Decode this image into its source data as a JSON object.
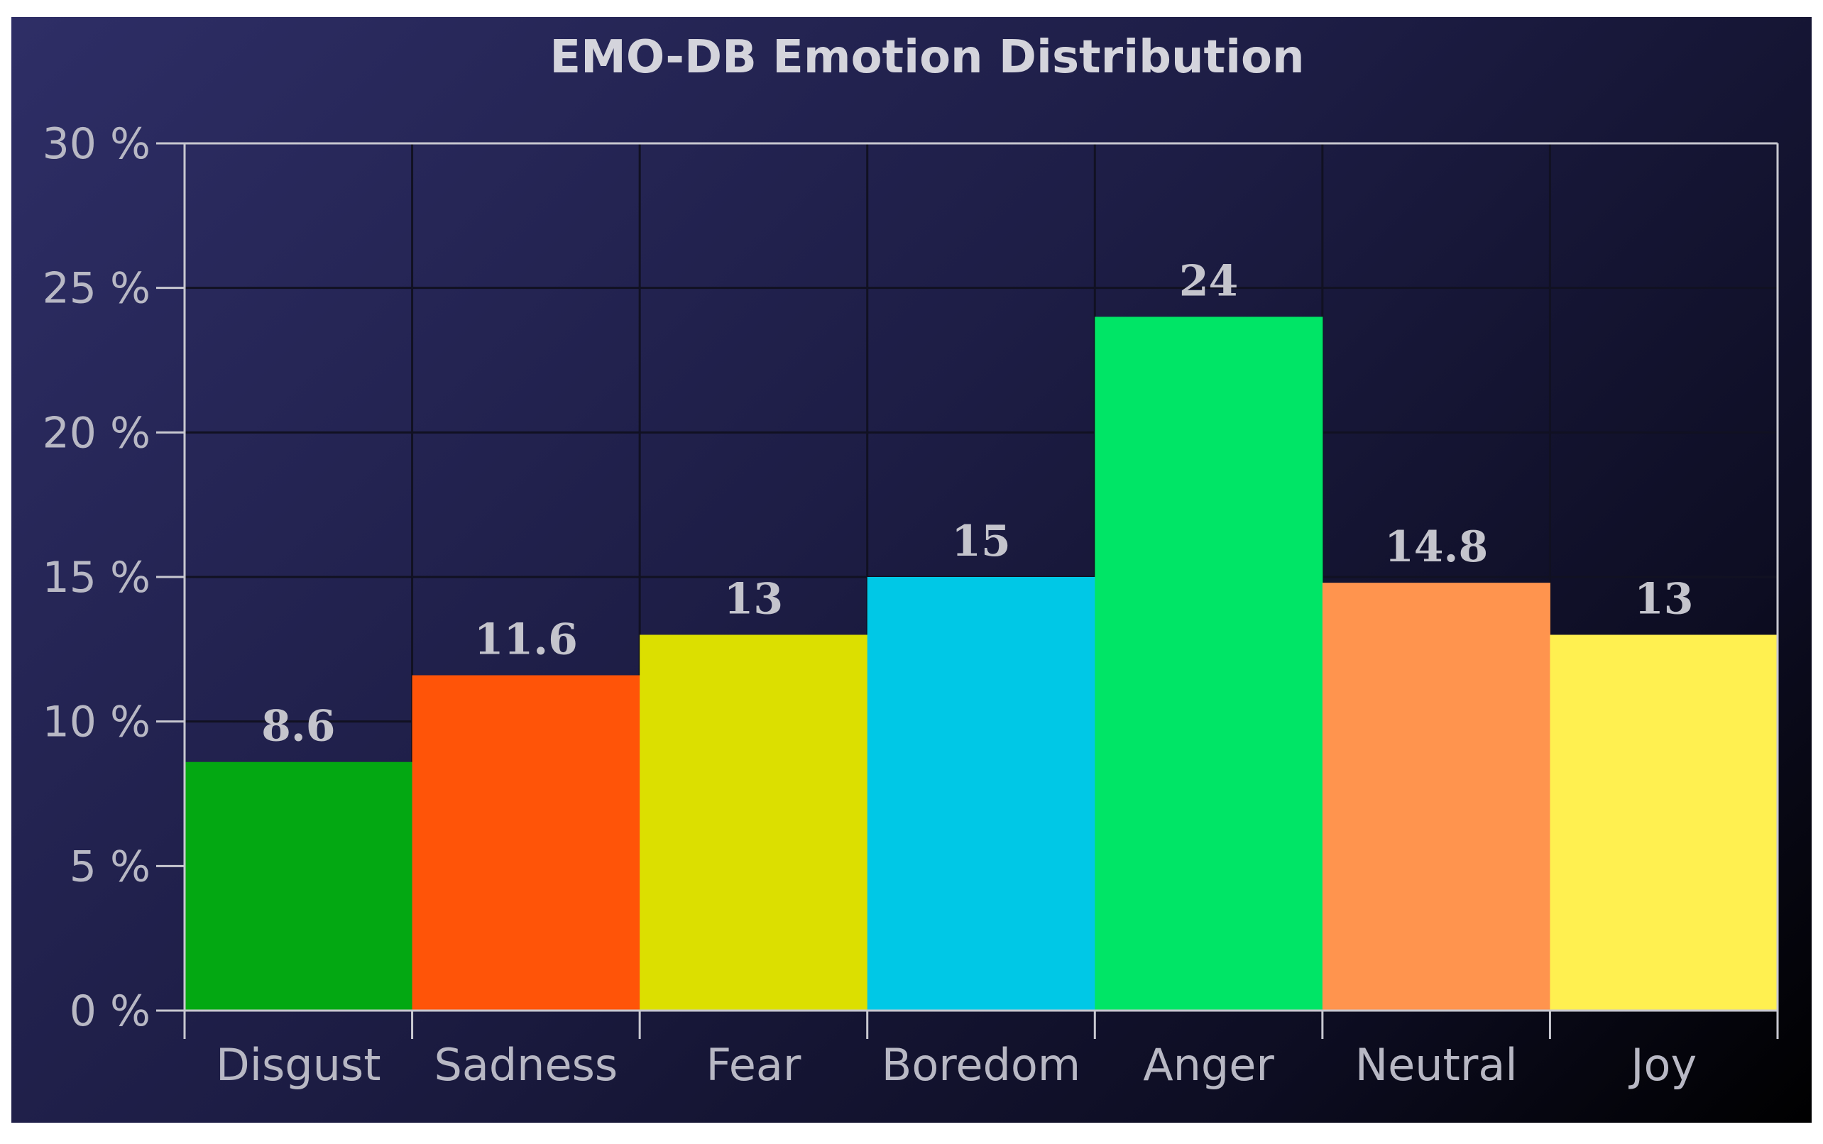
{
  "chart_data": {
    "type": "bar",
    "title": "EMO-DB Emotion Distribution",
    "xlabel": "",
    "ylabel": "",
    "categories": [
      "Disgust",
      "Sadness",
      "Fear",
      "Boredom",
      "Anger",
      "Neutral",
      "Joy"
    ],
    "values": [
      8.6,
      11.6,
      13,
      15,
      24,
      14.8,
      13
    ],
    "data_labels": [
      "8.6",
      "11.6",
      "13",
      "15",
      "24",
      "14.8",
      "13"
    ],
    "colors": [
      "#03a812",
      "#ff5408",
      "#dcdf00",
      "#00c8e6",
      "#00e566",
      "#ff944e",
      "#fff050"
    ],
    "ylim": [
      0,
      30
    ],
    "yticks": [
      0,
      5,
      10,
      15,
      20,
      25,
      30
    ],
    "ytick_labels": [
      "0 %",
      "5 %",
      "10 %",
      "15 %",
      "20 %",
      "25 %",
      "30 %"
    ],
    "grid": true,
    "legend": "none",
    "background": "#1d1d45",
    "grid_color": "#111122",
    "axis_color": "#c8c8d0"
  }
}
